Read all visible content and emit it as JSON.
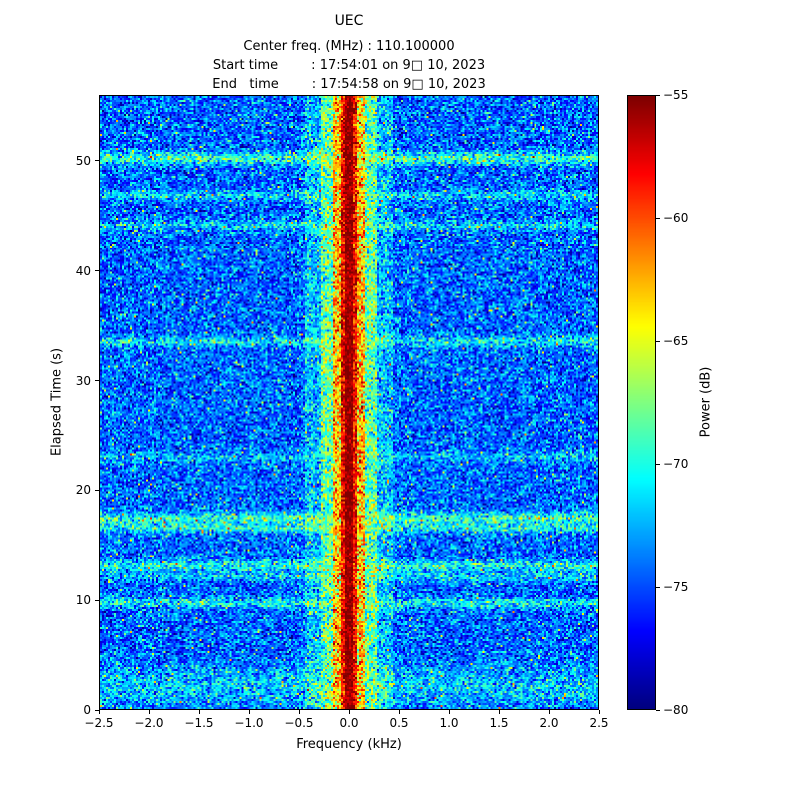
{
  "figure": {
    "title": "UEC",
    "info_lines": [
      "Center freq. (MHz) : 110.100000",
      "Start time        : 17:54:01 on 9□ 10, 2023",
      "End   time        : 17:54:58 on 9□ 10, 2023"
    ]
  },
  "chart_data": {
    "type": "heatmap",
    "subtype": "spectrogram-waterfall",
    "title": "UEC",
    "center_freq_mhz": 110.1,
    "start_time": "17:54:01 on 9□ 10, 2023",
    "end_time": "17:54:58 on 9□ 10, 2023",
    "xlabel": "Frequency (kHz)",
    "ylabel": "Elapsed Time (s)",
    "colorbar_label": "Power (dB)",
    "colormap": "jet",
    "grid": false,
    "xlim": [
      -2.5,
      2.5
    ],
    "ylim": [
      0,
      56
    ],
    "clim": [
      -80,
      -55
    ],
    "xticks": [
      -2.5,
      -2.0,
      -1.5,
      -1.0,
      -0.5,
      0.0,
      0.5,
      1.0,
      1.5,
      2.0,
      2.5
    ],
    "xtick_labels": [
      "−2.5",
      "−2.0",
      "−1.5",
      "−1.0",
      "−0.5",
      "0.0",
      "0.5",
      "1.0",
      "1.5",
      "2.0",
      "2.5"
    ],
    "yticks": [
      0,
      10,
      20,
      30,
      40,
      50
    ],
    "ytick_labels": [
      "0",
      "10",
      "20",
      "30",
      "40",
      "50"
    ],
    "colorbar_ticks": [
      -55,
      -60,
      -65,
      -70,
      -75,
      -80
    ],
    "colorbar_tick_labels": [
      "−55",
      "−60",
      "−65",
      "−70",
      "−75",
      "−80"
    ],
    "noise_floor_db": -74.5,
    "noise_std_db": 2.3,
    "carrier_signal": {
      "center_khz": 0.0,
      "peak_db": -55,
      "core_halfwidth_khz": 0.04,
      "skirt_halfwidth_khz": 0.28
    },
    "interference_bands_s": [
      {
        "time_s": 2.0,
        "boost_db": 3.5,
        "width_s": 1.8
      },
      {
        "time_s": 9.6,
        "boost_db": 5.0,
        "width_s": 0.45
      },
      {
        "time_s": 12.0,
        "boost_db": 3.5,
        "width_s": 0.4
      },
      {
        "time_s": 13.0,
        "boost_db": 6.0,
        "width_s": 0.5
      },
      {
        "time_s": 16.5,
        "boost_db": 5.5,
        "width_s": 0.45
      },
      {
        "time_s": 17.4,
        "boost_db": 7.0,
        "width_s": 0.5
      },
      {
        "time_s": 23.0,
        "boost_db": 3.0,
        "width_s": 0.4
      },
      {
        "time_s": 33.6,
        "boost_db": 5.0,
        "width_s": 0.45
      },
      {
        "time_s": 44.2,
        "boost_db": 4.0,
        "width_s": 0.4
      },
      {
        "time_s": 47.0,
        "boost_db": 4.0,
        "width_s": 0.4
      },
      {
        "time_s": 50.4,
        "boost_db": 7.0,
        "width_s": 0.55
      }
    ]
  }
}
